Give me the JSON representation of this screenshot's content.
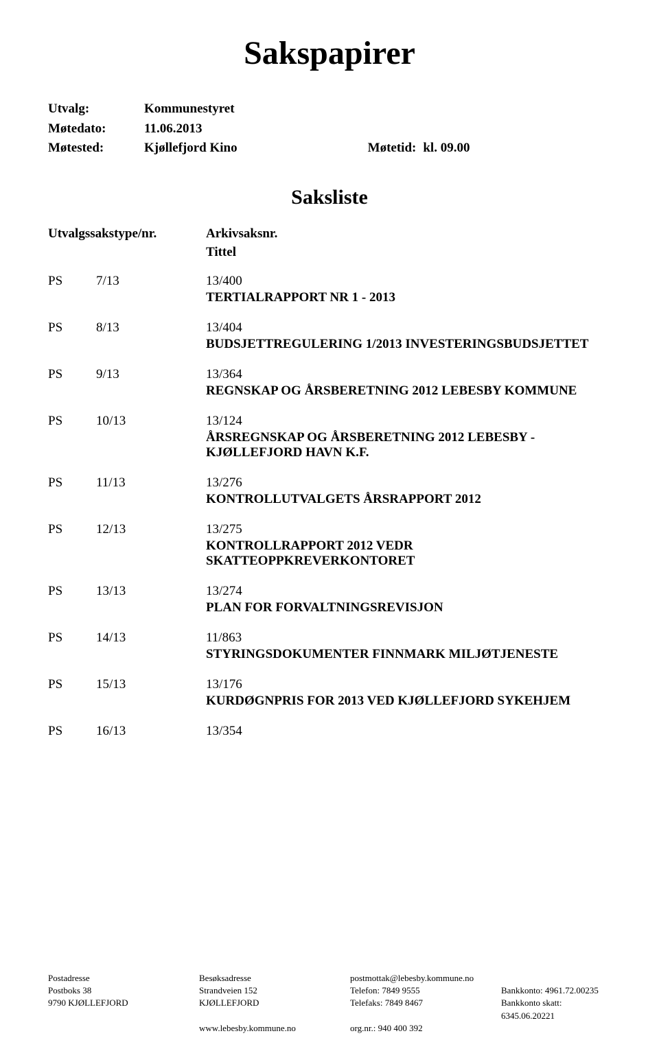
{
  "main_title": "Sakspapirer",
  "meta": {
    "utvalg_label": "Utvalg:",
    "utvalg_value": "Kommunestyret",
    "motedato_label": "Møtedato:",
    "motedato_value": "11.06.2013",
    "motested_label": "Møtested:",
    "motested_value": "Kjøllefjord Kino",
    "motetid_label": "Møtetid:",
    "motetid_value": "kl. 09.00"
  },
  "saksliste_title": "Saksliste",
  "headers": {
    "type": "Utvalgssakstype/nr.",
    "arkiv": "Arkivsaksnr.",
    "tittel": "Tittel"
  },
  "items": [
    {
      "ps": "PS",
      "num": "7/13",
      "ref": "13/400",
      "title": "TERTIALRAPPORT NR 1 - 2013"
    },
    {
      "ps": "PS",
      "num": "8/13",
      "ref": "13/404",
      "title": "BUDSJETTREGULERING 1/2013 INVESTERINGSBUDSJETTET"
    },
    {
      "ps": "PS",
      "num": "9/13",
      "ref": "13/364",
      "title": "REGNSKAP OG ÅRSBERETNING 2012 LEBESBY KOMMUNE"
    },
    {
      "ps": "PS",
      "num": "10/13",
      "ref": "13/124",
      "title": "ÅRSREGNSKAP OG ÅRSBERETNING 2012 LEBESBY - KJØLLEFJORD HAVN K.F."
    },
    {
      "ps": "PS",
      "num": "11/13",
      "ref": "13/276",
      "title": "KONTROLLUTVALGETS ÅRSRAPPORT 2012"
    },
    {
      "ps": "PS",
      "num": "12/13",
      "ref": "13/275",
      "title": "KONTROLLRAPPORT 2012 VEDR SKATTEOPPKREVERKONTORET"
    },
    {
      "ps": "PS",
      "num": "13/13",
      "ref": "13/274",
      "title": "PLAN FOR FORVALTNINGSREVISJON"
    },
    {
      "ps": "PS",
      "num": "14/13",
      "ref": "11/863",
      "title": "STYRINGSDOKUMENTER FINNMARK MILJØTJENESTE"
    },
    {
      "ps": "PS",
      "num": "15/13",
      "ref": "13/176",
      "title": "KURDØGNPRIS FOR 2013 VED KJØLLEFJORD SYKEHJEM"
    },
    {
      "ps": "PS",
      "num": "16/13",
      "ref": "13/354",
      "title": ""
    }
  ],
  "footer": {
    "row1": {
      "col1": "Postadresse",
      "col2": "Besøksadresse",
      "col3": "postmottak@lebesby.kommune.no",
      "col4": ""
    },
    "row2": {
      "col1": "Postboks 38",
      "col2": "Strandveien 152",
      "col3": "Telefon:    7849 9555",
      "col4": "Bankkonto:    4961.72.00235"
    },
    "row3": {
      "col1": "9790 KJØLLEFJORD",
      "col2": "KJØLLEFJORD",
      "col3": "Telefaks: 7849 8467",
      "col4": "Bankkonto skatt: 6345.06.20221"
    },
    "row4": {
      "col1": "",
      "col2": "www.lebesby.kommune.no",
      "col3": "org.nr.: 940 400 392",
      "col4": ""
    }
  }
}
